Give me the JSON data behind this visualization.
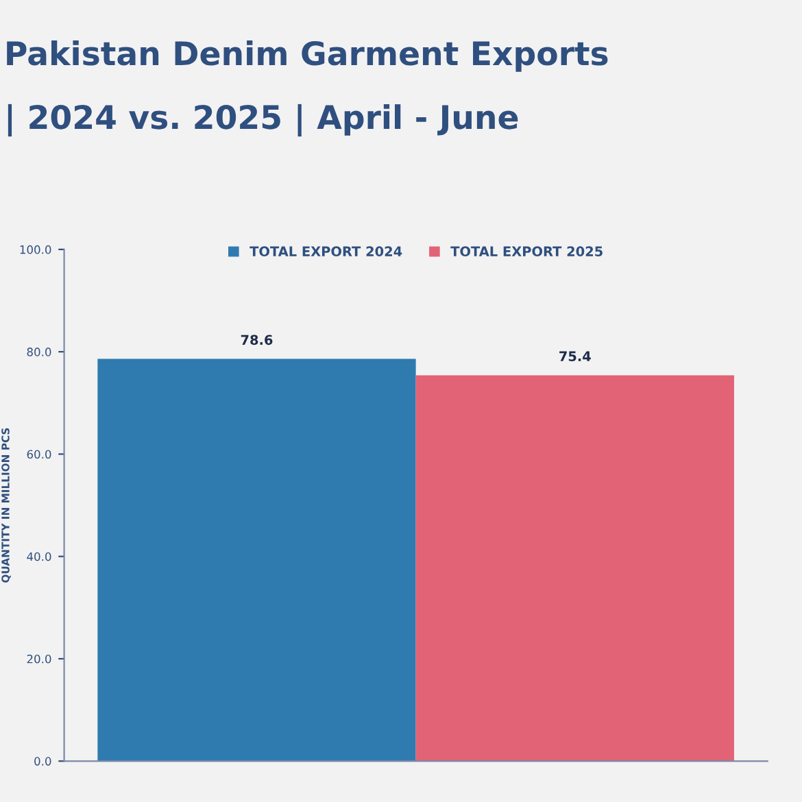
{
  "chart_data": {
    "type": "bar",
    "title": "Pakistan Denim Garment Exports",
    "subtitle": "| 2024 vs. 2025 | April - June",
    "ylabel": "QUANTITY IN MILLION PCS",
    "categories": [
      null
    ],
    "series": [
      {
        "name": "TOTAL EXPORT 2024",
        "color": "#2f7bb0",
        "values": [
          78.6
        ]
      },
      {
        "name": "TOTAL EXPORT 2025",
        "color": "#e26376",
        "values": [
          75.4
        ]
      }
    ],
    "ylim": [
      0,
      100
    ],
    "yticks": [
      {
        "value": 0,
        "label": "0.0"
      },
      {
        "value": 20,
        "label": "20.0"
      },
      {
        "value": 40,
        "label": "40.0"
      },
      {
        "value": 60,
        "label": "60.0"
      },
      {
        "value": 80,
        "label": "80.0"
      },
      {
        "value": 100,
        "label": "100.0"
      }
    ],
    "data_labels": true,
    "legend": "top",
    "grid": false
  }
}
